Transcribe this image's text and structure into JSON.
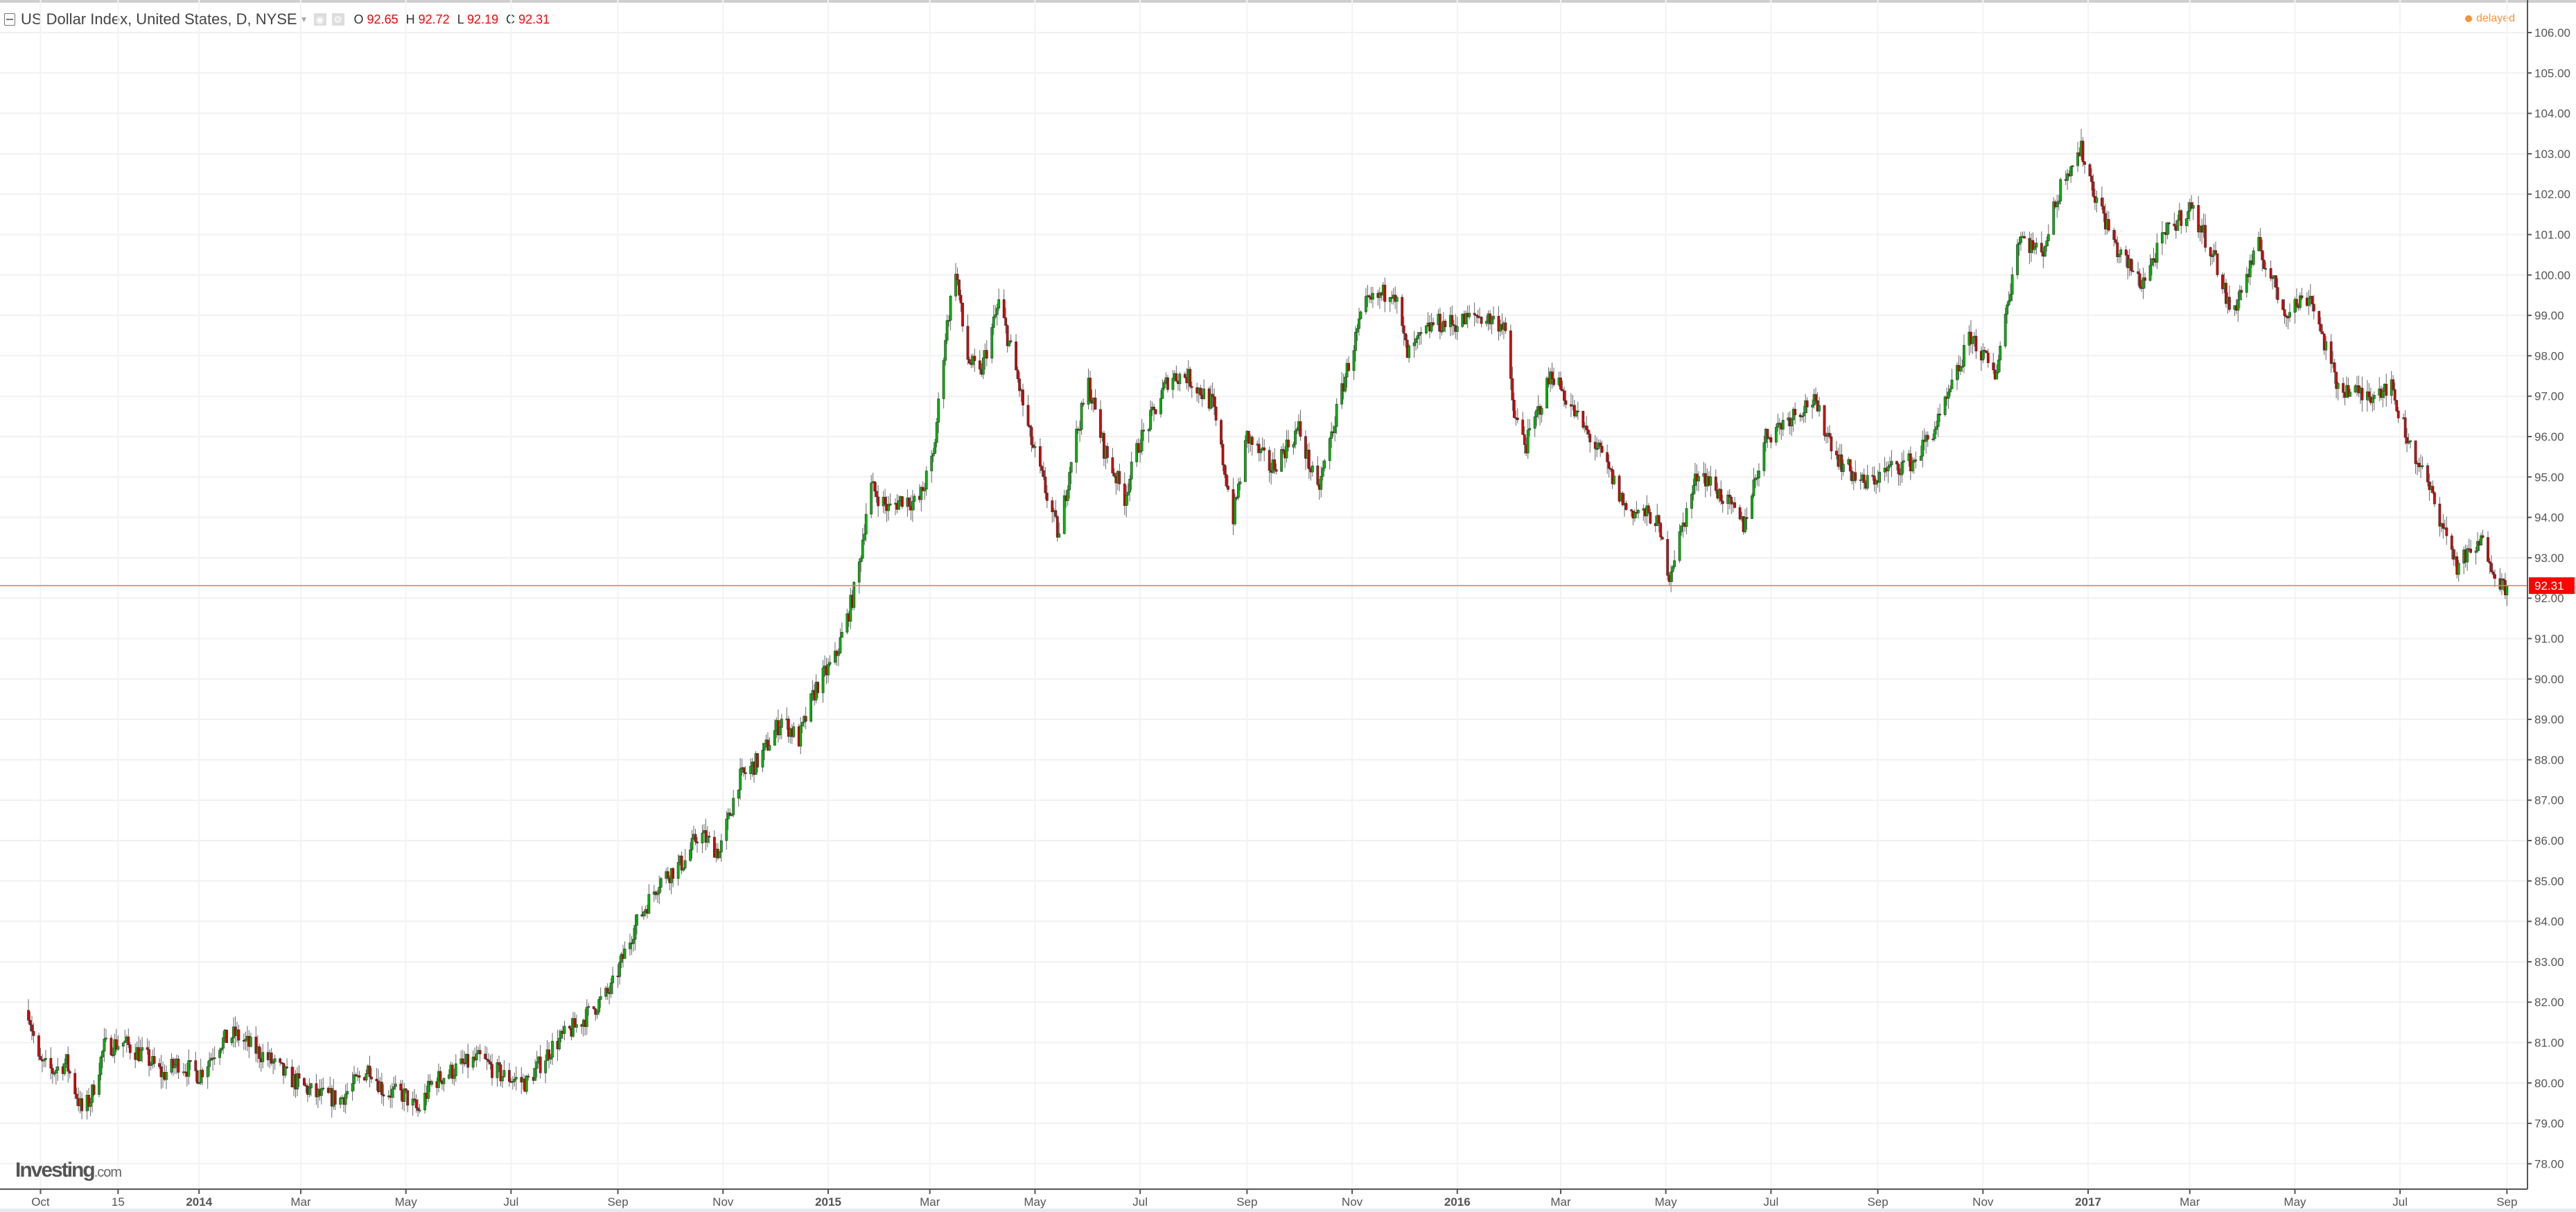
{
  "header": {
    "title": "US Dollar Index, United States, D, NYSE",
    "ohlc": {
      "o_label": "O",
      "o": "92.65",
      "h_label": "H",
      "h": "92.72",
      "l_label": "L",
      "l": "92.19",
      "c_label": "C",
      "c": "92.31"
    },
    "status": "delayed",
    "icons": [
      "collapse-icon",
      "dropdown-caret-icon",
      "eye-icon",
      "gear-icon"
    ]
  },
  "logo": {
    "text": "Investing",
    "suffix": ".com"
  },
  "colors": {
    "up": "#00b400",
    "down": "#d40000",
    "price_line": "#ff6b6b",
    "price_label_bg": "#ff0000",
    "status": "#f7923a"
  },
  "chart_data": {
    "type": "candlestick",
    "title": "US Dollar Index, United States, D, NYSE",
    "ylim": [
      77.5,
      106.5
    ],
    "yticks": [
      "106.00",
      "105.00",
      "104.00",
      "103.00",
      "102.00",
      "101.00",
      "100.00",
      "99.00",
      "98.00",
      "97.00",
      "96.00",
      "95.00",
      "94.00",
      "93.00",
      "92.00",
      "91.00",
      "90.00",
      "89.00",
      "88.00",
      "87.00",
      "86.00",
      "85.00",
      "84.00",
      "83.00",
      "82.00",
      "81.00",
      "80.00",
      "79.00",
      "78.00"
    ],
    "xticks": [
      {
        "date": "2013-10-01",
        "label": "Oct"
      },
      {
        "date": "2013-11-15",
        "label": "15"
      },
      {
        "date": "2014-01-01",
        "label": "2014",
        "bold": true
      },
      {
        "date": "2014-03-01",
        "label": "Mar"
      },
      {
        "date": "2014-05-01",
        "label": "May"
      },
      {
        "date": "2014-07-01",
        "label": "Jul"
      },
      {
        "date": "2014-09-01",
        "label": "Sep"
      },
      {
        "date": "2014-11-01",
        "label": "Nov"
      },
      {
        "date": "2015-01-01",
        "label": "2015",
        "bold": true
      },
      {
        "date": "2015-03-01",
        "label": "Mar"
      },
      {
        "date": "2015-05-01",
        "label": "May"
      },
      {
        "date": "2015-07-01",
        "label": "Jul"
      },
      {
        "date": "2015-09-01",
        "label": "Sep"
      },
      {
        "date": "2015-11-01",
        "label": "Nov"
      },
      {
        "date": "2016-01-01",
        "label": "2016",
        "bold": true
      },
      {
        "date": "2016-03-01",
        "label": "Mar"
      },
      {
        "date": "2016-05-01",
        "label": "May"
      },
      {
        "date": "2016-07-01",
        "label": "Jul"
      },
      {
        "date": "2016-09-01",
        "label": "Sep"
      },
      {
        "date": "2016-11-01",
        "label": "Nov"
      },
      {
        "date": "2017-01-01",
        "label": "2017",
        "bold": true
      },
      {
        "date": "2017-03-01",
        "label": "Mar"
      },
      {
        "date": "2017-05-01",
        "label": "May"
      },
      {
        "date": "2017-07-01",
        "label": "Jul"
      },
      {
        "date": "2017-09-01",
        "label": "Sep"
      }
    ],
    "last_price": 92.31,
    "last_price_label": "92.31",
    "closes": [
      [
        "2013-09-24",
        81.8
      ],
      [
        "2013-09-30",
        80.5
      ],
      [
        "2013-10-08",
        80.3
      ],
      [
        "2013-10-16",
        80.5
      ],
      [
        "2013-10-25",
        79.3
      ],
      [
        "2013-10-30",
        79.6
      ],
      [
        "2013-11-07",
        80.9
      ],
      [
        "2013-11-18",
        81.0
      ],
      [
        "2013-12-02",
        80.6
      ],
      [
        "2013-12-11",
        80.2
      ],
      [
        "2013-12-20",
        80.5
      ],
      [
        "2014-01-01",
        80.2
      ],
      [
        "2014-01-13",
        81.0
      ],
      [
        "2014-01-22",
        81.2
      ],
      [
        "2014-01-31",
        80.9
      ],
      [
        "2014-02-10",
        80.6
      ],
      [
        "2014-02-20",
        80.2
      ],
      [
        "2014-03-10",
        79.7
      ],
      [
        "2014-03-24",
        79.6
      ],
      [
        "2014-04-10",
        80.4
      ],
      [
        "2014-04-18",
        79.8
      ],
      [
        "2014-04-30",
        79.7
      ],
      [
        "2014-05-08",
        79.3
      ],
      [
        "2014-05-16",
        80.0
      ],
      [
        "2014-06-01",
        80.4
      ],
      [
        "2014-06-13",
        80.6
      ],
      [
        "2014-06-25",
        80.2
      ],
      [
        "2014-07-10",
        80.0
      ],
      [
        "2014-07-25",
        80.9
      ],
      [
        "2014-08-10",
        81.5
      ],
      [
        "2014-08-28",
        82.3
      ],
      [
        "2014-09-10",
        83.8
      ],
      [
        "2014-09-25",
        85.0
      ],
      [
        "2014-10-10",
        85.5
      ],
      [
        "2014-10-18",
        86.2
      ],
      [
        "2014-10-30",
        85.7
      ],
      [
        "2014-11-10",
        87.5
      ],
      [
        "2014-11-22",
        88.0
      ],
      [
        "2014-12-05",
        89.0
      ],
      [
        "2014-12-15",
        88.5
      ],
      [
        "2014-12-25",
        89.8
      ],
      [
        "2015-01-05",
        90.5
      ],
      [
        "2015-01-12",
        91.5
      ],
      [
        "2015-01-18",
        92.5
      ],
      [
        "2015-01-25",
        94.8
      ],
      [
        "2015-02-05",
        94.2
      ],
      [
        "2015-02-14",
        94.5
      ],
      [
        "2015-02-22",
        94.3
      ],
      [
        "2015-03-03",
        95.5
      ],
      [
        "2015-03-10",
        98.5
      ],
      [
        "2015-03-16",
        100.2
      ],
      [
        "2015-03-22",
        98.0
      ],
      [
        "2015-03-30",
        97.5
      ],
      [
        "2015-04-10",
        99.3
      ],
      [
        "2015-04-18",
        98.0
      ],
      [
        "2015-04-28",
        96.0
      ],
      [
        "2015-05-15",
        93.5
      ],
      [
        "2015-05-22",
        95.5
      ],
      [
        "2015-06-01",
        97.3
      ],
      [
        "2015-06-10",
        95.7
      ],
      [
        "2015-06-22",
        94.5
      ],
      [
        "2015-06-30",
        95.8
      ],
      [
        "2015-07-08",
        96.5
      ],
      [
        "2015-07-18",
        97.5
      ],
      [
        "2015-07-28",
        97.5
      ],
      [
        "2015-08-12",
        96.8
      ],
      [
        "2015-08-24",
        94.0
      ],
      [
        "2015-09-01",
        96.0
      ],
      [
        "2015-09-15",
        95.2
      ],
      [
        "2015-10-01",
        96.2
      ],
      [
        "2015-10-12",
        94.6
      ],
      [
        "2015-10-28",
        97.5
      ],
      [
        "2015-11-08",
        99.2
      ],
      [
        "2015-11-25",
        99.7
      ],
      [
        "2015-12-03",
        98.0
      ],
      [
        "2015-12-18",
        98.8
      ],
      [
        "2016-01-01",
        98.8
      ],
      [
        "2016-01-12",
        99.0
      ],
      [
        "2016-01-28",
        98.8
      ],
      [
        "2016-02-03",
        96.5
      ],
      [
        "2016-02-10",
        95.8
      ],
      [
        "2016-02-25",
        97.6
      ],
      [
        "2016-03-10",
        96.5
      ],
      [
        "2016-03-25",
        95.5
      ],
      [
        "2016-04-08",
        94.2
      ],
      [
        "2016-04-25",
        94.0
      ],
      [
        "2016-05-03",
        92.6
      ],
      [
        "2016-05-20",
        95.2
      ],
      [
        "2016-06-03",
        94.5
      ],
      [
        "2016-06-15",
        93.8
      ],
      [
        "2016-06-28",
        96.0
      ],
      [
        "2016-07-12",
        96.5
      ],
      [
        "2016-07-25",
        96.9
      ],
      [
        "2016-08-10",
        95.4
      ],
      [
        "2016-08-24",
        94.8
      ],
      [
        "2016-09-08",
        95.2
      ],
      [
        "2016-09-22",
        95.4
      ],
      [
        "2016-10-08",
        96.5
      ],
      [
        "2016-10-25",
        98.5
      ],
      [
        "2016-11-08",
        97.5
      ],
      [
        "2016-11-22",
        101.0
      ],
      [
        "2016-12-05",
        100.5
      ],
      [
        "2016-12-18",
        102.5
      ],
      [
        "2016-12-28",
        103.1
      ],
      [
        "2017-01-05",
        102.0
      ],
      [
        "2017-01-18",
        100.6
      ],
      [
        "2017-02-01",
        99.8
      ],
      [
        "2017-02-15",
        101.0
      ],
      [
        "2017-03-01",
        101.7
      ],
      [
        "2017-03-15",
        100.5
      ],
      [
        "2017-03-25",
        99.0
      ],
      [
        "2017-04-10",
        100.7
      ],
      [
        "2017-04-25",
        99.1
      ],
      [
        "2017-05-10",
        99.5
      ],
      [
        "2017-05-25",
        97.3
      ],
      [
        "2017-06-10",
        97.0
      ],
      [
        "2017-06-25",
        97.3
      ],
      [
        "2017-07-05",
        96.0
      ],
      [
        "2017-07-20",
        94.5
      ],
      [
        "2017-08-03",
        92.8
      ],
      [
        "2017-08-18",
        93.4
      ],
      [
        "2017-08-29",
        92.3
      ],
      [
        "2017-09-01",
        92.31
      ]
    ]
  }
}
